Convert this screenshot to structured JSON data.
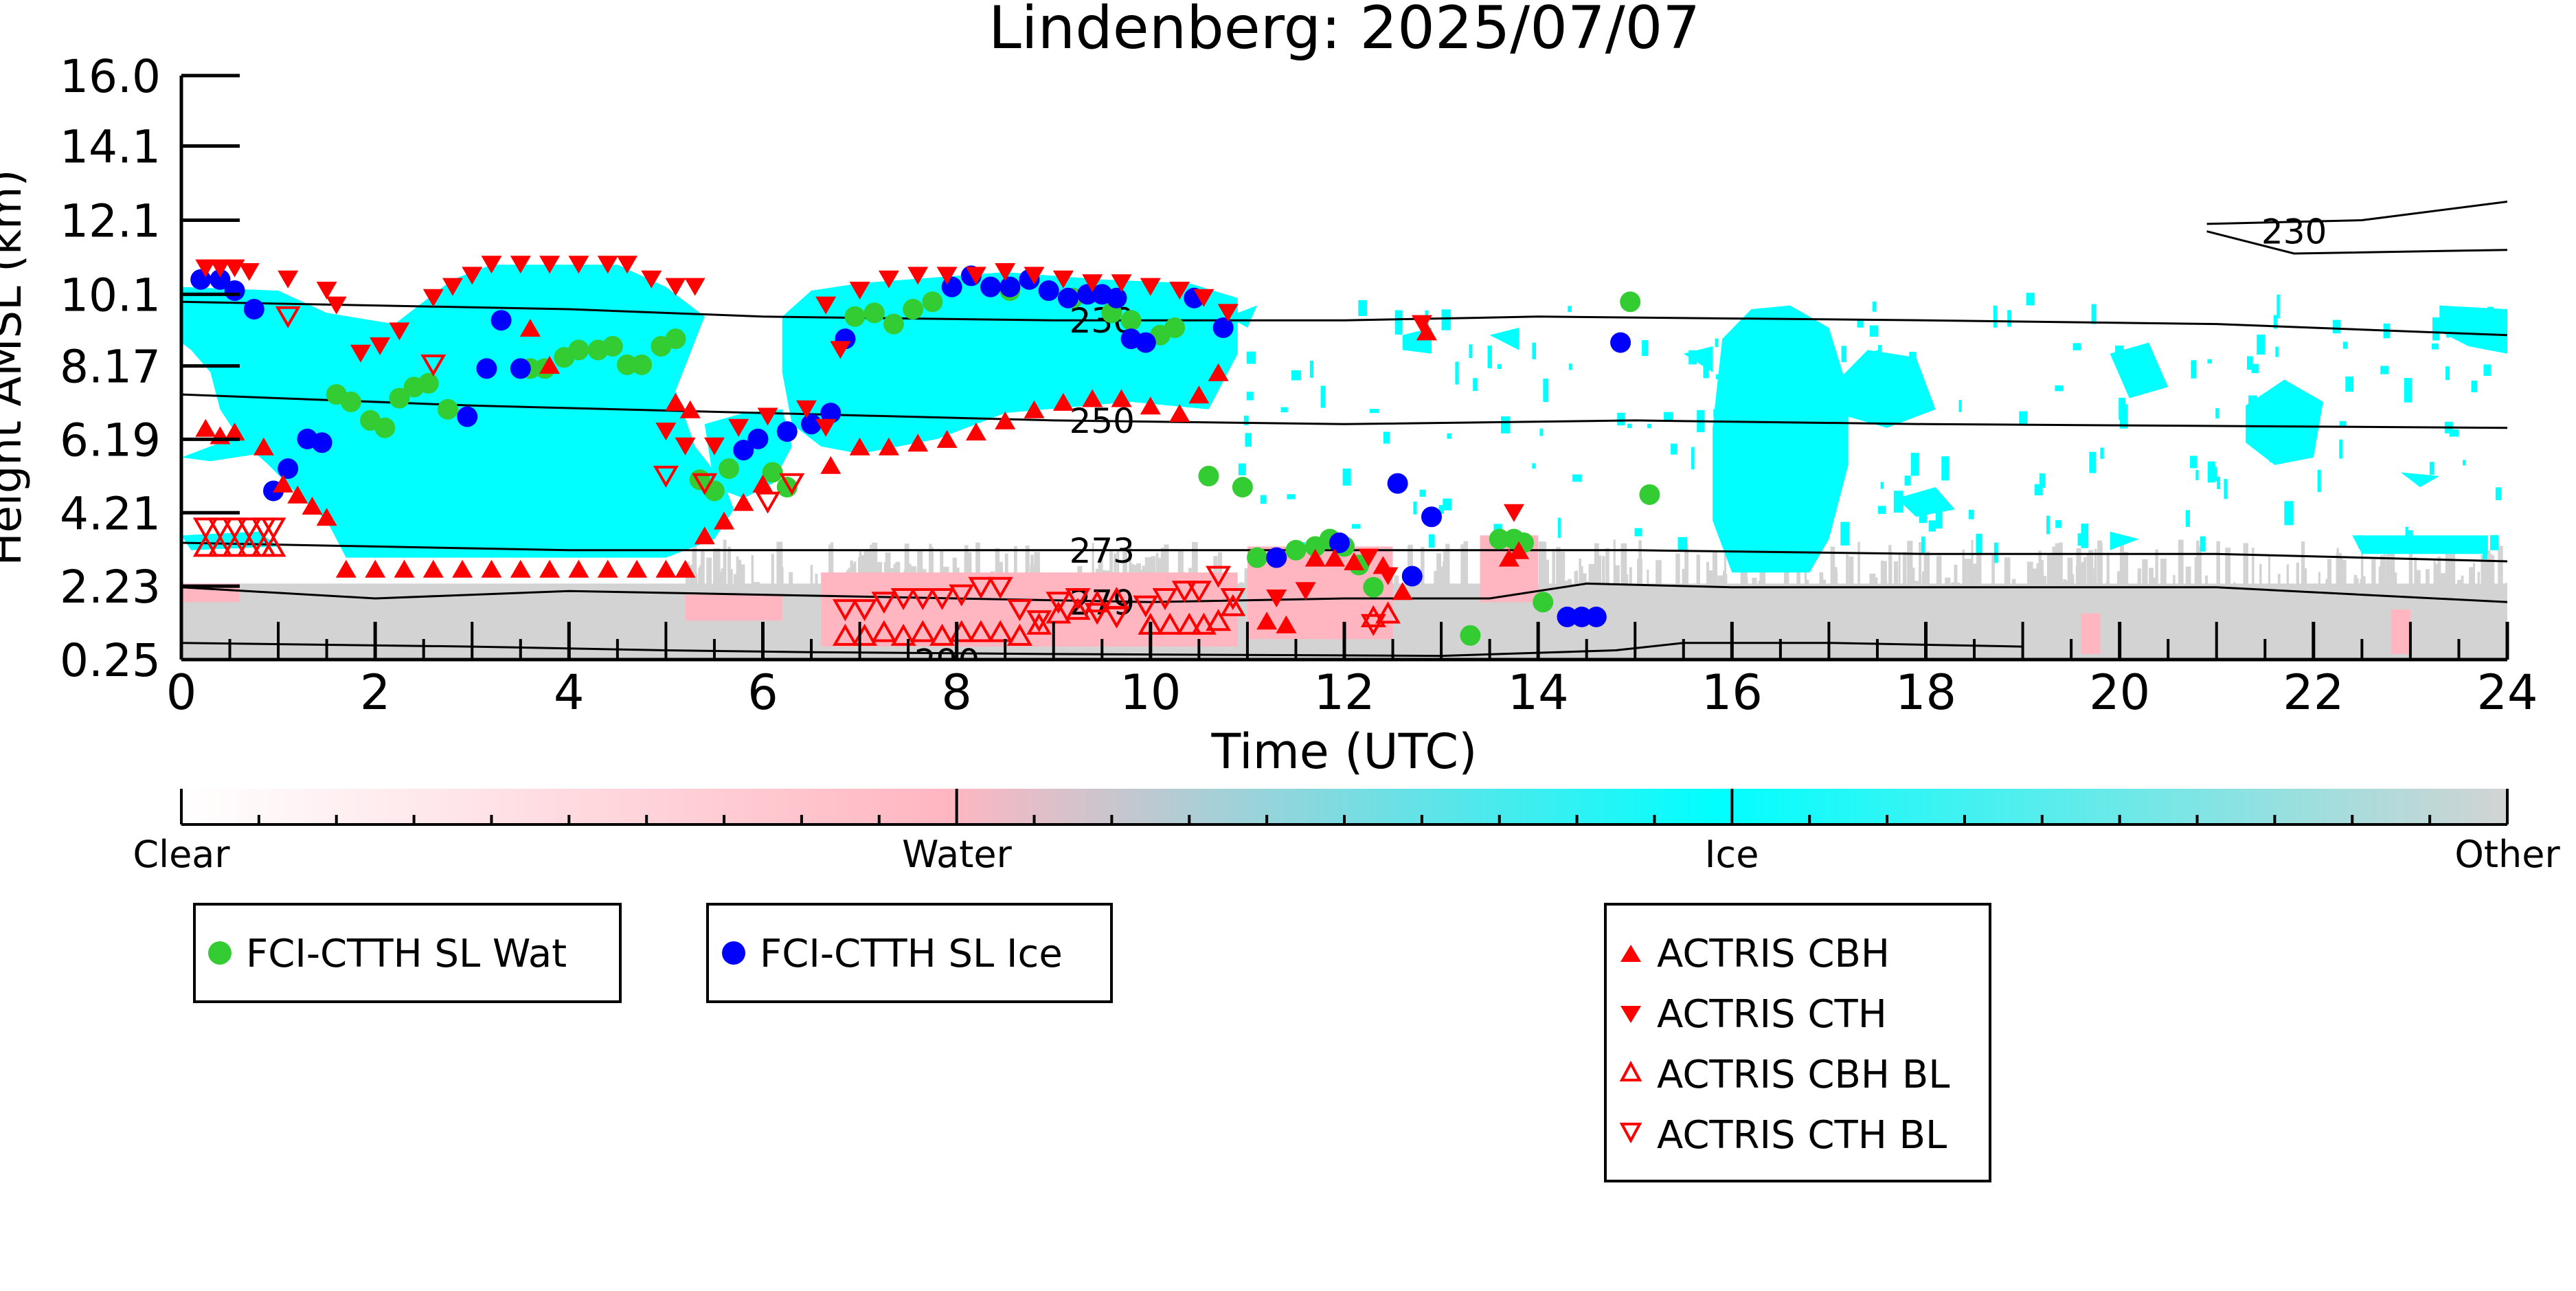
{
  "chart_data": {
    "type": "scatter",
    "title": "Lindenberg: 2025/07/07",
    "xlabel": "Time (UTC)",
    "ylabel": "Height AMSL (km)",
    "xlim": [
      0,
      24
    ],
    "ylim": [
      0.25,
      16.0
    ],
    "x_ticks": [
      "0",
      "2",
      "4",
      "6",
      "8",
      "10",
      "12",
      "14",
      "16",
      "18",
      "20",
      "22",
      "24"
    ],
    "y_ticks": [
      "0.25",
      "2.23",
      "4.21",
      "6.19",
      "8.17",
      "10.1",
      "12.1",
      "14.1",
      "16.0"
    ],
    "colorbar": {
      "labels": [
        "Clear",
        "Water",
        "Ice",
        "Other"
      ],
      "colors": [
        "#ffffff",
        "#ffb6c1",
        "#00ffff",
        "#d3d3d3"
      ]
    },
    "contour_labels": [
      "230",
      "250",
      "273",
      "279",
      "230",
      "290"
    ],
    "legend": {
      "fci": [
        "FCI-CTTH SL Wat",
        "FCI-CTTH SL Ice"
      ],
      "actris": [
        "ACTRIS CBH",
        "ACTRIS CTH",
        "ACTRIS CBH BL",
        "ACTRIS CTH BL"
      ]
    },
    "series": [
      {
        "name": "FCI-CTTH SL Wat",
        "color": "#33cc33",
        "marker": "circle",
        "points": [
          [
            1.6,
            7.4
          ],
          [
            1.75,
            7.2
          ],
          [
            1.95,
            6.7
          ],
          [
            2.1,
            6.5
          ],
          [
            2.25,
            7.3
          ],
          [
            2.4,
            7.6
          ],
          [
            2.55,
            7.7
          ],
          [
            2.75,
            7.0
          ],
          [
            3.6,
            8.1
          ],
          [
            3.75,
            8.1
          ],
          [
            3.95,
            8.4
          ],
          [
            4.1,
            8.6
          ],
          [
            4.3,
            8.6
          ],
          [
            4.45,
            8.7
          ],
          [
            4.6,
            8.2
          ],
          [
            4.75,
            8.2
          ],
          [
            4.95,
            8.7
          ],
          [
            5.1,
            8.9
          ],
          [
            5.35,
            5.1
          ],
          [
            5.5,
            4.8
          ],
          [
            5.65,
            5.4
          ],
          [
            6.1,
            5.3
          ],
          [
            6.25,
            4.9
          ],
          [
            6.95,
            9.5
          ],
          [
            7.15,
            9.6
          ],
          [
            7.35,
            9.3
          ],
          [
            7.55,
            9.7
          ],
          [
            7.75,
            9.9
          ],
          [
            8.55,
            10.2
          ],
          [
            9.2,
            10.0
          ],
          [
            9.6,
            9.6
          ],
          [
            9.8,
            9.4
          ],
          [
            10.1,
            9.0
          ],
          [
            10.25,
            9.2
          ],
          [
            10.6,
            5.2
          ],
          [
            10.95,
            4.9
          ],
          [
            11.1,
            3.0
          ],
          [
            11.5,
            3.2
          ],
          [
            11.7,
            3.3
          ],
          [
            11.85,
            3.5
          ],
          [
            12.0,
            3.3
          ],
          [
            12.15,
            2.8
          ],
          [
            12.3,
            2.2
          ],
          [
            13.3,
            0.9
          ],
          [
            13.6,
            3.5
          ],
          [
            13.75,
            3.5
          ],
          [
            13.85,
            3.4
          ],
          [
            14.05,
            1.8
          ],
          [
            14.95,
            9.9
          ],
          [
            15.15,
            4.7
          ]
        ]
      },
      {
        "name": "FCI-CTTH SL Ice",
        "color": "#0000ff",
        "marker": "circle",
        "points": [
          [
            0.2,
            10.5
          ],
          [
            0.4,
            10.5
          ],
          [
            0.55,
            10.2
          ],
          [
            0.75,
            9.7
          ],
          [
            0.95,
            4.8
          ],
          [
            1.1,
            5.4
          ],
          [
            1.3,
            6.2
          ],
          [
            1.45,
            6.1
          ],
          [
            2.95,
            6.8
          ],
          [
            3.15,
            8.1
          ],
          [
            3.3,
            9.4
          ],
          [
            3.5,
            8.1
          ],
          [
            5.8,
            5.9
          ],
          [
            5.95,
            6.2
          ],
          [
            6.25,
            6.4
          ],
          [
            6.5,
            6.6
          ],
          [
            6.7,
            6.9
          ],
          [
            6.85,
            8.9
          ],
          [
            7.95,
            10.3
          ],
          [
            8.15,
            10.6
          ],
          [
            8.35,
            10.3
          ],
          [
            8.55,
            10.3
          ],
          [
            8.75,
            10.5
          ],
          [
            8.95,
            10.2
          ],
          [
            9.15,
            10.0
          ],
          [
            9.35,
            10.1
          ],
          [
            9.5,
            10.1
          ],
          [
            9.65,
            10.0
          ],
          [
            9.8,
            8.9
          ],
          [
            9.95,
            8.8
          ],
          [
            10.45,
            10.0
          ],
          [
            10.75,
            9.2
          ],
          [
            11.3,
            3.0
          ],
          [
            11.95,
            3.4
          ],
          [
            12.55,
            5.0
          ],
          [
            12.7,
            2.5
          ],
          [
            12.9,
            4.1
          ],
          [
            14.3,
            1.4
          ],
          [
            14.45,
            1.4
          ],
          [
            14.6,
            1.4
          ],
          [
            14.85,
            8.8
          ]
        ]
      },
      {
        "name": "ACTRIS CBH",
        "color": "#ff0000",
        "marker": "triangle-up",
        "points": [
          [
            0.25,
            6.5
          ],
          [
            0.4,
            6.3
          ],
          [
            0.55,
            6.4
          ],
          [
            0.85,
            6.0
          ],
          [
            1.05,
            5.0
          ],
          [
            1.2,
            4.7
          ],
          [
            1.35,
            4.4
          ],
          [
            1.5,
            4.1
          ],
          [
            1.7,
            2.7
          ],
          [
            2.0,
            2.7
          ],
          [
            2.3,
            2.7
          ],
          [
            2.6,
            2.7
          ],
          [
            2.9,
            2.7
          ],
          [
            3.2,
            2.7
          ],
          [
            3.5,
            2.7
          ],
          [
            3.8,
            2.7
          ],
          [
            4.1,
            2.7
          ],
          [
            4.4,
            2.7
          ],
          [
            4.7,
            2.7
          ],
          [
            5.0,
            2.7
          ],
          [
            5.2,
            2.7
          ],
          [
            5.4,
            3.6
          ],
          [
            5.6,
            4.0
          ],
          [
            5.8,
            4.5
          ],
          [
            6.0,
            5.0
          ],
          [
            6.7,
            5.5
          ],
          [
            7.0,
            6.0
          ],
          [
            7.3,
            6.0
          ],
          [
            7.6,
            6.1
          ],
          [
            7.9,
            6.2
          ],
          [
            8.2,
            6.4
          ],
          [
            8.5,
            6.7
          ],
          [
            8.8,
            7.0
          ],
          [
            9.1,
            7.2
          ],
          [
            9.4,
            7.3
          ],
          [
            9.7,
            7.3
          ],
          [
            10.0,
            7.1
          ],
          [
            10.3,
            6.9
          ],
          [
            10.5,
            7.4
          ],
          [
            10.7,
            8.0
          ],
          [
            11.2,
            1.3
          ],
          [
            11.4,
            1.2
          ],
          [
            11.7,
            3.0
          ],
          [
            11.9,
            3.0
          ],
          [
            12.1,
            2.9
          ],
          [
            12.4,
            2.8
          ],
          [
            12.6,
            2.1
          ],
          [
            12.85,
            9.1
          ],
          [
            13.7,
            3.0
          ],
          [
            13.8,
            3.2
          ],
          [
            3.6,
            9.2
          ],
          [
            3.8,
            8.2
          ],
          [
            5.1,
            7.2
          ],
          [
            5.25,
            7.0
          ]
        ]
      },
      {
        "name": "ACTRIS CTH",
        "color": "#ff0000",
        "marker": "triangle-down",
        "points": [
          [
            0.25,
            10.8
          ],
          [
            0.4,
            10.8
          ],
          [
            0.55,
            10.8
          ],
          [
            0.7,
            10.7
          ],
          [
            1.1,
            10.5
          ],
          [
            1.5,
            10.2
          ],
          [
            1.6,
            9.8
          ],
          [
            1.85,
            8.5
          ],
          [
            2.05,
            8.7
          ],
          [
            2.25,
            9.1
          ],
          [
            2.6,
            10.0
          ],
          [
            2.8,
            10.3
          ],
          [
            3.0,
            10.6
          ],
          [
            3.2,
            10.9
          ],
          [
            3.5,
            10.9
          ],
          [
            3.8,
            10.9
          ],
          [
            4.1,
            10.9
          ],
          [
            4.4,
            10.9
          ],
          [
            4.6,
            10.9
          ],
          [
            4.85,
            10.5
          ],
          [
            5.1,
            10.3
          ],
          [
            5.3,
            10.3
          ],
          [
            5.0,
            6.4
          ],
          [
            5.2,
            6.0
          ],
          [
            5.5,
            6.0
          ],
          [
            5.75,
            6.5
          ],
          [
            6.05,
            6.8
          ],
          [
            6.45,
            7.0
          ],
          [
            6.65,
            6.5
          ],
          [
            6.65,
            9.8
          ],
          [
            6.8,
            8.6
          ],
          [
            7.0,
            10.2
          ],
          [
            7.3,
            10.5
          ],
          [
            7.6,
            10.6
          ],
          [
            7.9,
            10.6
          ],
          [
            8.2,
            10.6
          ],
          [
            8.5,
            10.7
          ],
          [
            8.8,
            10.6
          ],
          [
            9.1,
            10.5
          ],
          [
            9.4,
            10.4
          ],
          [
            9.7,
            10.4
          ],
          [
            10.0,
            10.3
          ],
          [
            10.3,
            10.2
          ],
          [
            10.55,
            10.0
          ],
          [
            10.8,
            9.6
          ],
          [
            11.3,
            1.9
          ],
          [
            11.6,
            2.1
          ],
          [
            12.25,
            3.0
          ],
          [
            12.45,
            2.5
          ],
          [
            12.8,
            9.3
          ],
          [
            13.75,
            4.2
          ]
        ]
      },
      {
        "name": "ACTRIS CBH BL",
        "color": "#ff0000",
        "marker": "triangle-up-open",
        "points": [
          [
            0.25,
            3.3
          ],
          [
            0.4,
            3.3
          ],
          [
            0.55,
            3.3
          ],
          [
            0.7,
            3.3
          ],
          [
            0.85,
            3.3
          ],
          [
            0.95,
            3.3
          ],
          [
            6.85,
            0.9
          ],
          [
            7.05,
            0.9
          ],
          [
            7.25,
            1.0
          ],
          [
            7.45,
            0.9
          ],
          [
            7.65,
            1.0
          ],
          [
            7.85,
            0.9
          ],
          [
            8.05,
            1.0
          ],
          [
            8.25,
            1.0
          ],
          [
            8.45,
            1.0
          ],
          [
            8.65,
            0.9
          ],
          [
            8.85,
            1.2
          ],
          [
            9.05,
            1.5
          ],
          [
            9.25,
            1.6
          ],
          [
            9.45,
            1.8
          ],
          [
            9.65,
            1.9
          ],
          [
            10.0,
            1.2
          ],
          [
            10.2,
            1.2
          ],
          [
            10.4,
            1.2
          ],
          [
            10.55,
            1.2
          ],
          [
            10.7,
            1.3
          ],
          [
            10.85,
            1.7
          ],
          [
            12.3,
            1.4
          ],
          [
            12.45,
            1.5
          ]
        ]
      },
      {
        "name": "ACTRIS CTH BL",
        "color": "#ff0000",
        "marker": "triangle-down-open",
        "points": [
          [
            0.25,
            3.8
          ],
          [
            0.4,
            3.8
          ],
          [
            0.55,
            3.8
          ],
          [
            0.7,
            3.8
          ],
          [
            0.85,
            3.8
          ],
          [
            0.95,
            3.8
          ],
          [
            1.1,
            9.5
          ],
          [
            2.6,
            8.2
          ],
          [
            5.0,
            5.2
          ],
          [
            5.4,
            5.0
          ],
          [
            6.05,
            4.5
          ],
          [
            6.3,
            5.0
          ],
          [
            6.85,
            1.6
          ],
          [
            7.05,
            1.6
          ],
          [
            7.25,
            1.8
          ],
          [
            7.45,
            1.9
          ],
          [
            7.65,
            1.9
          ],
          [
            7.85,
            1.9
          ],
          [
            8.05,
            2.0
          ],
          [
            8.25,
            2.2
          ],
          [
            8.45,
            2.2
          ],
          [
            8.65,
            1.6
          ],
          [
            8.85,
            1.3
          ],
          [
            9.05,
            1.8
          ],
          [
            9.25,
            1.9
          ],
          [
            9.45,
            1.5
          ],
          [
            9.65,
            1.4
          ],
          [
            9.95,
            1.7
          ],
          [
            10.15,
            1.9
          ],
          [
            10.35,
            2.1
          ],
          [
            10.5,
            2.1
          ],
          [
            10.7,
            2.5
          ],
          [
            10.85,
            1.9
          ],
          [
            12.3,
            1.2
          ]
        ]
      }
    ]
  }
}
